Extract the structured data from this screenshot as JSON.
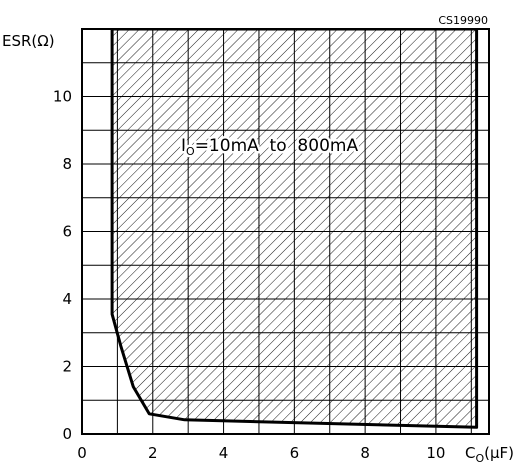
{
  "chart_data": {
    "type": "area",
    "figure_code": "CS19990",
    "xlabel": {
      "base": "C",
      "sub": "O",
      "unit": "(μF)"
    },
    "ylabel": "ESR(Ω)",
    "xlim": [
      0,
      11.5
    ],
    "ylim": [
      0,
      12
    ],
    "x_ticks": [
      0,
      2,
      4,
      6,
      8,
      10
    ],
    "y_ticks": [
      0,
      2,
      4,
      6,
      8,
      10
    ],
    "x_grid_step": 1,
    "y_grid_step": 1,
    "grid": true,
    "annotation": {
      "base": "I",
      "sub": "O",
      "text": "=10mA  to  800mA"
    },
    "stable_region": {
      "fill": "hatched",
      "boundary": [
        {
          "x": 0.85,
          "y": 12
        },
        {
          "x": 0.85,
          "y": 3.55
        },
        {
          "x": 1.1,
          "y": 2.6
        },
        {
          "x": 1.45,
          "y": 1.4
        },
        {
          "x": 1.9,
          "y": 0.6
        },
        {
          "x": 2.9,
          "y": 0.42
        },
        {
          "x": 11.15,
          "y": 0.2
        },
        {
          "x": 11.15,
          "y": 12
        }
      ]
    }
  }
}
